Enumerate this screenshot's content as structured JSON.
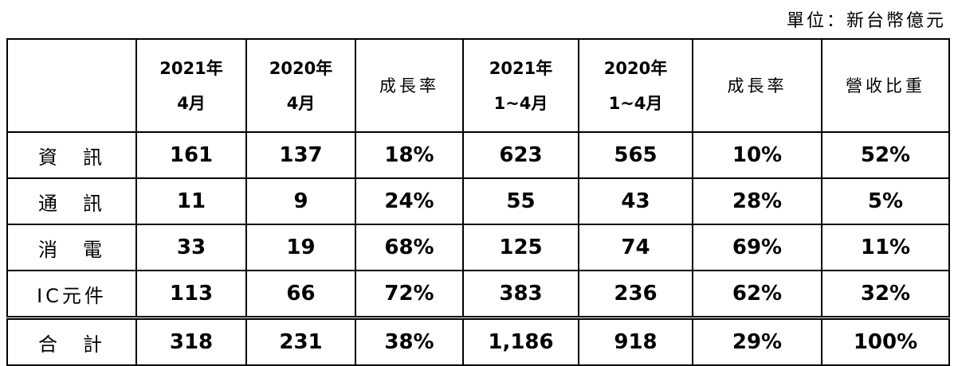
{
  "unit_note": "單位：新台幣億元",
  "table": {
    "header": [
      [
        ""
      ],
      [
        "2021年",
        "4月"
      ],
      [
        "2020年",
        "4月"
      ],
      [
        "成長率"
      ],
      [
        "2021年",
        "1~4月"
      ],
      [
        "2020年",
        "1~4月"
      ],
      [
        "成長率"
      ],
      [
        "營收比重"
      ]
    ],
    "rows": [
      [
        "資　訊",
        "161",
        "137",
        "18%",
        "623",
        "565",
        "10%",
        "52%"
      ],
      [
        "通　訊",
        "11",
        "9",
        "24%",
        "55",
        "43",
        "28%",
        "5%"
      ],
      [
        "消　電",
        "33",
        "19",
        "68%",
        "125",
        "74",
        "69%",
        "11%"
      ],
      [
        "IC元件",
        "113",
        "66",
        "72%",
        "383",
        "236",
        "62%",
        "32%"
      ],
      [
        "合　計",
        "318",
        "231",
        "38%",
        "1,186",
        "918",
        "29%",
        "100%"
      ]
    ]
  }
}
